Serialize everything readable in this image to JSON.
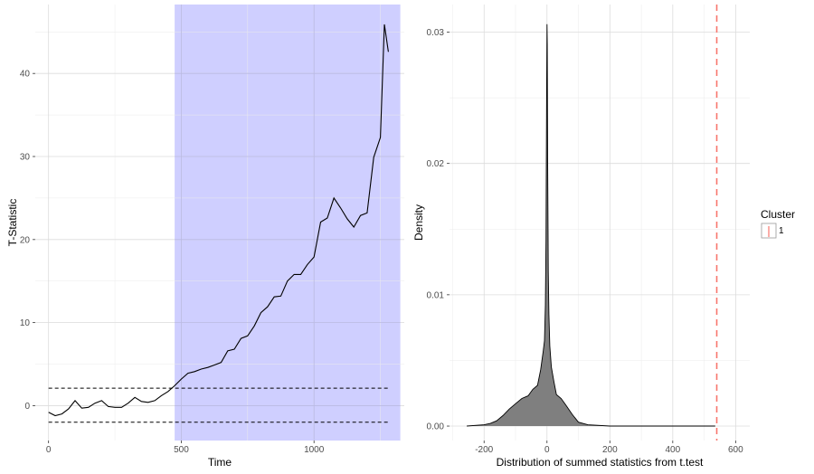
{
  "chart_data": [
    {
      "type": "line",
      "xlabel": "Time",
      "ylabel": "T-Statistic",
      "xlim": [
        -50,
        1340
      ],
      "ylim": [
        -4.2,
        48.3
      ],
      "x_ticks": [
        0,
        500,
        1000
      ],
      "y_ticks": [
        0,
        10,
        20,
        30,
        40
      ],
      "grid": true,
      "highlight_region": {
        "x_start": 475,
        "x_end": 1325,
        "color": "#ccccff"
      },
      "threshold_lines": [
        {
          "y": 2.1,
          "x_range": [
            0,
            1280
          ],
          "style": "dashed"
        },
        {
          "y": -2.0,
          "x_range": [
            0,
            1280
          ],
          "style": "dashed"
        }
      ],
      "series": [
        {
          "x": [
            0,
            25,
            50,
            75,
            100,
            125,
            150,
            175,
            200,
            225,
            250,
            275,
            300,
            325,
            350,
            375,
            400,
            425,
            450,
            475,
            500,
            525,
            550,
            575,
            600,
            625,
            650,
            675,
            700,
            725,
            750,
            775,
            800,
            825,
            850,
            875,
            900,
            925,
            950,
            975,
            1000,
            1025,
            1050,
            1075,
            1100,
            1125,
            1150,
            1175,
            1200,
            1225,
            1250,
            1265,
            1280
          ],
          "values": [
            -0.8,
            -1.2,
            -1.0,
            -0.4,
            0.6,
            -0.3,
            -0.2,
            0.3,
            0.6,
            -0.1,
            -0.2,
            -0.2,
            0.3,
            1.0,
            0.5,
            0.4,
            0.6,
            1.2,
            1.7,
            2.4,
            3.2,
            3.9,
            4.1,
            4.4,
            4.6,
            4.9,
            5.2,
            6.6,
            6.8,
            8.1,
            8.4,
            9.6,
            11.2,
            11.9,
            13.1,
            13.2,
            15.0,
            15.8,
            15.8,
            17.0,
            17.9,
            22.1,
            22.6,
            25.0,
            23.8,
            22.5,
            21.5,
            22.9,
            23.2,
            29.9,
            32.3,
            45.9,
            42.6
          ]
        }
      ]
    },
    {
      "type": "area",
      "xlabel": "Distribution of summed statistics from t.test",
      "ylabel": "Density",
      "xlim": [
        -310,
        645
      ],
      "ylim": [
        -0.0011,
        0.0321
      ],
      "x_ticks": [
        -200,
        0,
        200,
        400,
        600
      ],
      "y_ticks": [
        0.0,
        0.01,
        0.02,
        0.03
      ],
      "y_tick_labels": [
        "0.00",
        "0.01",
        "0.02",
        "0.03"
      ],
      "grid": true,
      "fill_color": "#7f7f7f",
      "series": [
        {
          "x": [
            -255,
            -200,
            -180,
            -160,
            -140,
            -120,
            -100,
            -80,
            -60,
            -45,
            -30,
            -20,
            -12,
            -8,
            -5,
            -3,
            -1,
            0,
            1,
            2,
            4,
            6,
            9,
            14,
            22,
            30,
            45,
            60,
            80,
            100,
            130,
            200,
            535
          ],
          "values": [
            0.0,
            0.0001,
            0.0002,
            0.0004,
            0.0008,
            0.0013,
            0.0017,
            0.0021,
            0.0023,
            0.0028,
            0.0031,
            0.0043,
            0.0057,
            0.0065,
            0.0092,
            0.0142,
            0.0256,
            0.0306,
            0.0291,
            0.0205,
            0.0118,
            0.0085,
            0.0061,
            0.0045,
            0.0034,
            0.0024,
            0.0021,
            0.0016,
            0.0009,
            0.0003,
            0.0001,
            0.0,
            0.0
          ]
        }
      ],
      "reference_line": {
        "x": 540,
        "style": "dashed",
        "color": "#f8766d"
      },
      "legend": {
        "title": "Cluster",
        "entries": [
          "1"
        ],
        "placement": "right"
      }
    }
  ]
}
